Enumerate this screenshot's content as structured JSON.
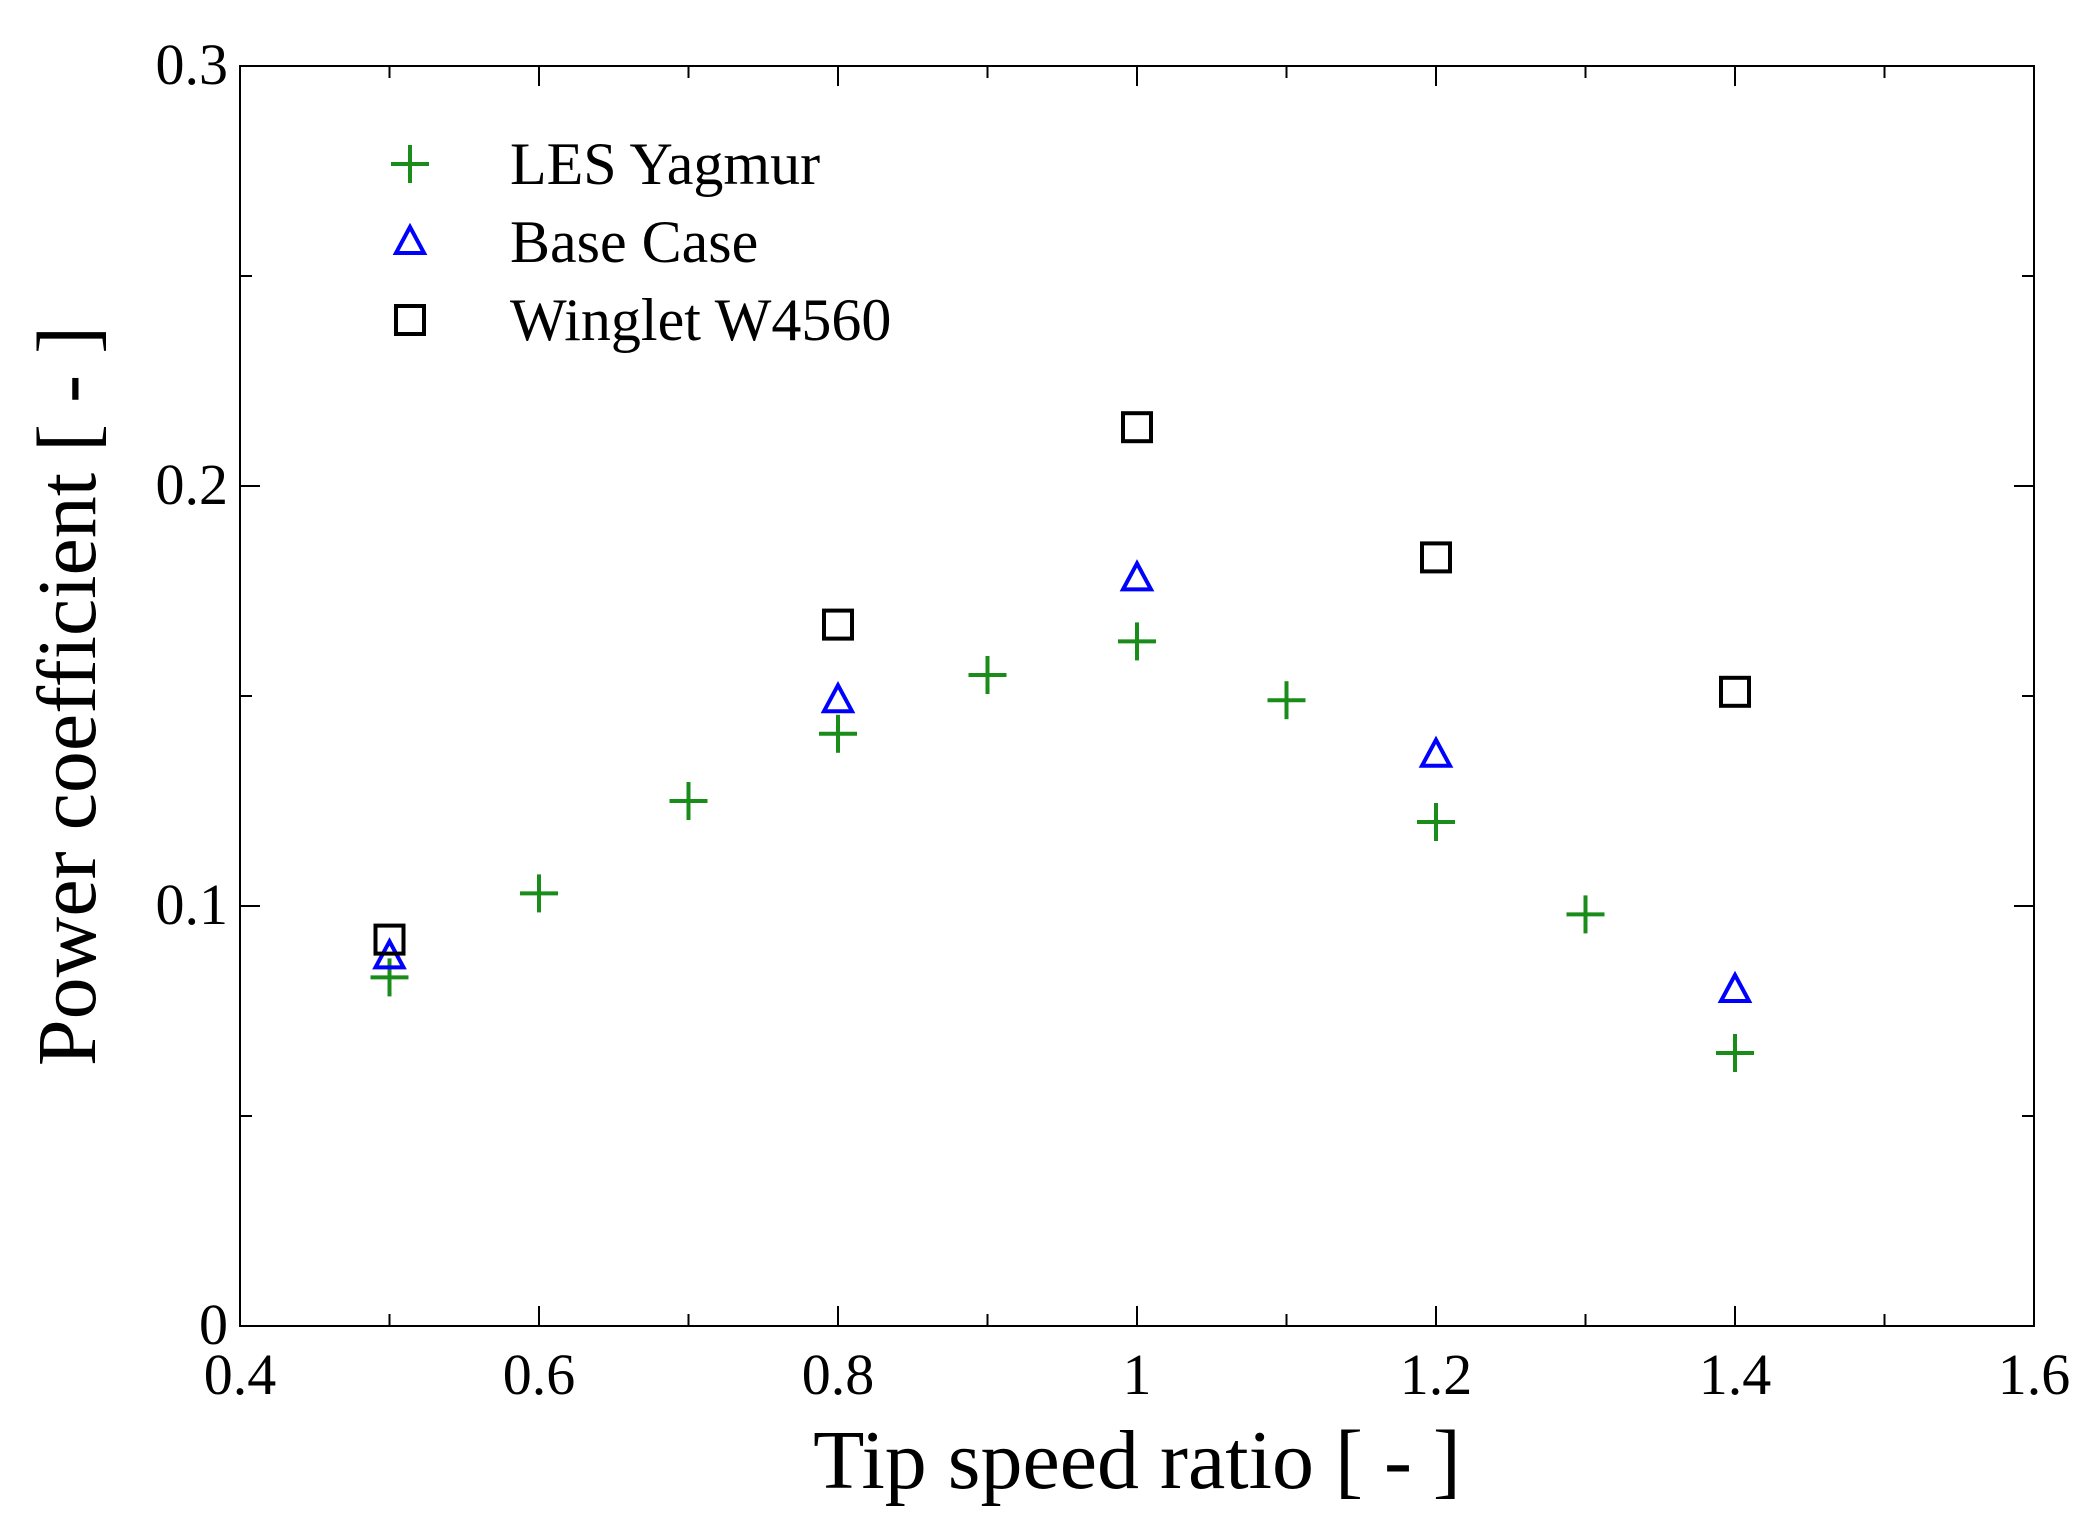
{
  "chart_data": {
    "type": "scatter",
    "xlabel": "Tip speed ratio [ - ]",
    "ylabel": "Power coefficient [ - ]",
    "xlim": [
      0.4,
      1.6
    ],
    "ylim": [
      0,
      0.3
    ],
    "xticks": [
      0.4,
      0.6,
      0.8,
      1.0,
      1.2,
      1.4,
      1.6
    ],
    "xtick_labels": [
      "0.4",
      "0.6",
      "0.8",
      "1",
      "1.2",
      "1.4",
      "1.6"
    ],
    "yticks": [
      0,
      0.1,
      0.2,
      0.3
    ],
    "ytick_labels": [
      "0",
      "0.1",
      "0.2",
      "0.3"
    ],
    "legend_position": "top-left",
    "series": [
      {
        "name": "LES Yagmur",
        "marker": "plus",
        "color": "#1a8c1a",
        "points": [
          [
            0.5,
            0.083
          ],
          [
            0.6,
            0.103
          ],
          [
            0.7,
            0.125
          ],
          [
            0.8,
            0.141
          ],
          [
            0.9,
            0.155
          ],
          [
            1.0,
            0.163
          ],
          [
            1.1,
            0.149
          ],
          [
            1.2,
            0.12
          ],
          [
            1.3,
            0.098
          ],
          [
            1.4,
            0.065
          ]
        ]
      },
      {
        "name": "Base Case",
        "marker": "triangle",
        "color": "#0000ff",
        "points": [
          [
            0.5,
            0.088
          ],
          [
            0.8,
            0.149
          ],
          [
            1.0,
            0.178
          ],
          [
            1.2,
            0.136
          ],
          [
            1.4,
            0.08
          ]
        ]
      },
      {
        "name": "Winglet W4560",
        "marker": "square",
        "color": "#000000",
        "points": [
          [
            0.5,
            0.092
          ],
          [
            0.8,
            0.167
          ],
          [
            1.0,
            0.214
          ],
          [
            1.2,
            0.183
          ],
          [
            1.4,
            0.151
          ]
        ]
      }
    ]
  }
}
